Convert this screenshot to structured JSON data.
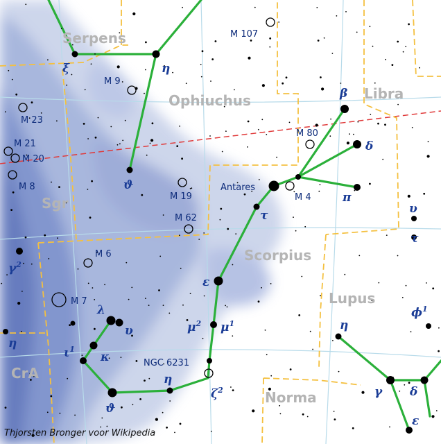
{
  "map": {
    "credit": "Thjorsten Bronger voor Wikipedia",
    "colors": {
      "constellation_line": "#2bb03a",
      "boundary": "#f4c040",
      "ecliptic": "#e03a3a",
      "grid": "#b8dbea",
      "milky_way": "#3d5aa8",
      "star": "#000000",
      "label": "#1a3c96",
      "constellation_name": "#b4b4b4"
    },
    "constellations": [
      {
        "name": "Serpens"
      },
      {
        "name": "Ophiuchus"
      },
      {
        "name": "Libra"
      },
      {
        "name": "Sgr"
      },
      {
        "name": "Scorpius"
      },
      {
        "name": "Lupus"
      },
      {
        "name": "CrA"
      },
      {
        "name": "Norma"
      }
    ],
    "deep_sky_objects": [
      {
        "name": "M 107"
      },
      {
        "name": "M 9"
      },
      {
        "name": "M 23"
      },
      {
        "name": "M 80"
      },
      {
        "name": "M 21"
      },
      {
        "name": "M 20"
      },
      {
        "name": "M 8"
      },
      {
        "name": "M 19"
      },
      {
        "name": "M 4"
      },
      {
        "name": "M 62"
      },
      {
        "name": "M 6"
      },
      {
        "name": "M 7"
      },
      {
        "name": "NGC 6231"
      }
    ],
    "named_stars": [
      {
        "name": "Antares"
      }
    ],
    "star_labels": [
      {
        "base": "ξ",
        "sup": ""
      },
      {
        "base": "η",
        "sup": ""
      },
      {
        "base": "β",
        "sup": ""
      },
      {
        "base": "δ",
        "sup": ""
      },
      {
        "base": "ϑ",
        "sup": ""
      },
      {
        "base": "τ",
        "sup": ""
      },
      {
        "base": "π",
        "sup": ""
      },
      {
        "base": "υ",
        "sup": ""
      },
      {
        "base": "τ",
        "sup": ""
      },
      {
        "base": "γ",
        "sup": "2"
      },
      {
        "base": "ε",
        "sup": ""
      },
      {
        "base": "λ",
        "sup": ""
      },
      {
        "base": "υ",
        "sup": ""
      },
      {
        "base": "μ",
        "sup": "2"
      },
      {
        "base": "μ",
        "sup": "1"
      },
      {
        "base": "η",
        "sup": ""
      },
      {
        "base": "ι",
        "sup": "1"
      },
      {
        "base": "κ",
        "sup": ""
      },
      {
        "base": "η",
        "sup": ""
      },
      {
        "base": "ϑ",
        "sup": ""
      },
      {
        "base": "ζ",
        "sup": "2"
      },
      {
        "base": "η",
        "sup": ""
      },
      {
        "base": "ϕ",
        "sup": "1"
      },
      {
        "base": "γ",
        "sup": ""
      },
      {
        "base": "δ",
        "sup": ""
      },
      {
        "base": "ε",
        "sup": ""
      }
    ]
  }
}
